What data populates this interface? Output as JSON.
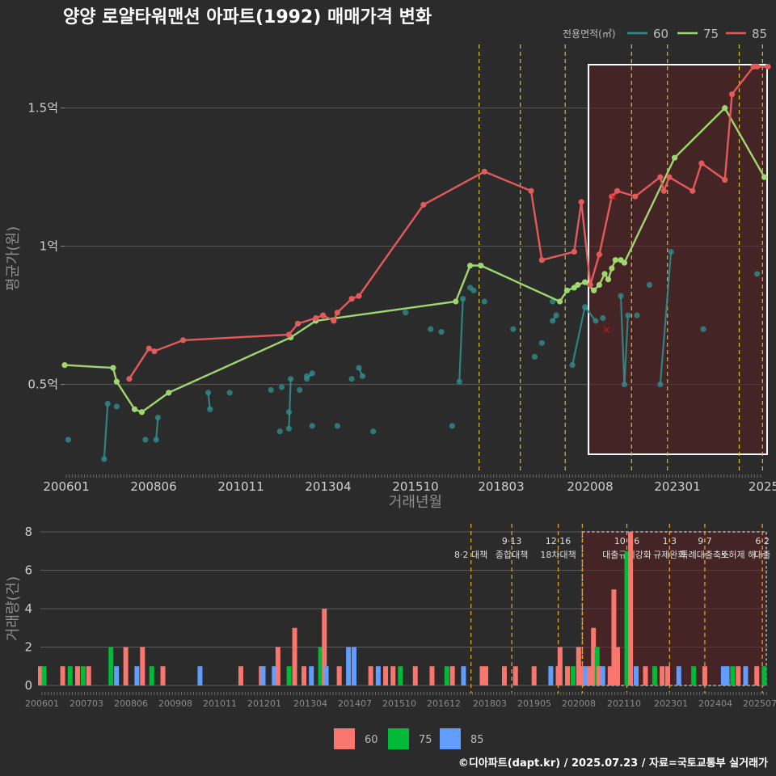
{
  "title": "양양 로얄타워맨션 아파트(1992) 매매가격 변화",
  "footer": "©디아파트(dapt.kr) / 2025.07.23 / 자료=국토교통부 실거래가",
  "legend_top": {
    "heading": "전용면적(㎡)",
    "items": [
      {
        "label": "60",
        "color": "#2f8c8c"
      },
      {
        "label": "75",
        "color": "#9ed66f"
      },
      {
        "label": "85",
        "color": "#e45a5a"
      }
    ]
  },
  "legend_bottom": [
    {
      "label": "60",
      "color": "#f8766d"
    },
    {
      "label": "75",
      "color": "#00ba38"
    },
    {
      "label": "85",
      "color": "#619cff"
    }
  ],
  "chart_data": [
    {
      "type": "line",
      "title": "양양 로얄타워맨션 아파트(1992) 매매가격 변화",
      "xlabel": "거래년월",
      "ylabel": "평균가(원)",
      "x_ticks": [
        "200601",
        "200806",
        "201011",
        "201304",
        "201510",
        "201803",
        "202008",
        "202301",
        "2025"
      ],
      "y_ticks": [
        {
          "value": 0.5,
          "label": "0.5억"
        },
        {
          "value": 1.0,
          "label": "1억"
        },
        {
          "value": 1.5,
          "label": "1.5억"
        }
      ],
      "ylim": [
        0.18,
        1.73
      ],
      "xlim": [
        2006.0,
        2025.6
      ],
      "grid": true,
      "legend": "top-right",
      "series": [
        {
          "name": "60",
          "color": "#2f8c8c",
          "style": "scatter",
          "points": [
            [
              2006.1,
              0.3
            ],
            [
              2007.1,
              0.23
            ],
            [
              2007.2,
              0.43
            ],
            [
              2007.45,
              0.42
            ],
            [
              2008.25,
              0.3
            ],
            [
              2008.55,
              0.3
            ],
            [
              2008.6,
              0.38
            ],
            [
              2010.0,
              0.47
            ],
            [
              2010.05,
              0.41
            ],
            [
              2010.6,
              0.47
            ],
            [
              2011.75,
              0.48
            ],
            [
              2012.0,
              0.33
            ],
            [
              2012.05,
              0.49
            ],
            [
              2012.25,
              0.34
            ],
            [
              2012.25,
              0.4
            ],
            [
              2012.3,
              0.52
            ],
            [
              2012.55,
              0.48
            ],
            [
              2012.75,
              0.52
            ],
            [
              2012.75,
              0.53
            ],
            [
              2012.9,
              0.35
            ],
            [
              2012.9,
              0.54
            ],
            [
              2013.6,
              0.35
            ],
            [
              2014.0,
              0.52
            ],
            [
              2014.2,
              0.56
            ],
            [
              2014.3,
              0.53
            ],
            [
              2014.6,
              0.33
            ],
            [
              2015.5,
              0.76
            ],
            [
              2016.2,
              0.7
            ],
            [
              2016.5,
              0.69
            ],
            [
              2016.8,
              0.35
            ],
            [
              2017.0,
              0.51
            ],
            [
              2017.1,
              0.81
            ],
            [
              2017.3,
              0.85
            ],
            [
              2017.4,
              0.84
            ],
            [
              2017.7,
              0.8
            ],
            [
              2018.5,
              0.7
            ],
            [
              2019.1,
              0.6
            ],
            [
              2019.3,
              0.65
            ],
            [
              2019.6,
              0.8
            ],
            [
              2019.6,
              0.73
            ],
            [
              2019.7,
              0.75
            ],
            [
              2020.15,
              0.57
            ],
            [
              2020.5,
              0.78
            ],
            [
              2020.8,
              0.73
            ],
            [
              2021.0,
              0.74
            ],
            [
              2021.5,
              0.82
            ],
            [
              2021.6,
              0.5
            ],
            [
              2021.7,
              0.75
            ],
            [
              2021.95,
              0.75
            ],
            [
              2022.3,
              0.86
            ],
            [
              2022.6,
              0.5
            ],
            [
              2022.9,
              0.98
            ],
            [
              2023.8,
              0.7
            ],
            [
              2025.3,
              0.9
            ]
          ],
          "segments": [
            [
              [
                2007.1,
                0.23
              ],
              [
                2007.2,
                0.43
              ]
            ],
            [
              [
                2008.55,
                0.3
              ],
              [
                2008.6,
                0.38
              ]
            ],
            [
              [
                2010.0,
                0.47
              ],
              [
                2010.05,
                0.41
              ]
            ],
            [
              [
                2012.25,
                0.34
              ],
              [
                2012.3,
                0.52
              ]
            ],
            [
              [
                2012.75,
                0.52
              ],
              [
                2012.9,
                0.54
              ]
            ],
            [
              [
                2014.2,
                0.56
              ],
              [
                2014.3,
                0.53
              ]
            ],
            [
              [
                2017.0,
                0.51
              ],
              [
                2017.1,
                0.81
              ]
            ],
            [
              [
                2019.6,
                0.73
              ],
              [
                2019.7,
                0.75
              ]
            ],
            [
              [
                2020.15,
                0.57
              ],
              [
                2020.5,
                0.78
              ]
            ],
            [
              [
                2020.5,
                0.78
              ],
              [
                2020.8,
                0.73
              ]
            ],
            [
              [
                2021.5,
                0.82
              ],
              [
                2021.6,
                0.5
              ]
            ],
            [
              [
                2021.6,
                0.5
              ],
              [
                2021.7,
                0.75
              ]
            ],
            [
              [
                2022.6,
                0.5
              ],
              [
                2022.9,
                0.98
              ]
            ]
          ]
        },
        {
          "name": "75",
          "color": "#9ed66f",
          "style": "line",
          "points": [
            [
              2006.0,
              0.57
            ],
            [
              2007.35,
              0.56
            ],
            [
              2007.45,
              0.51
            ],
            [
              2007.95,
              0.41
            ],
            [
              2008.15,
              0.4
            ],
            [
              2008.9,
              0.47
            ],
            [
              2012.3,
              0.67
            ],
            [
              2013.0,
              0.73
            ],
            [
              2016.9,
              0.8
            ],
            [
              2017.3,
              0.93
            ],
            [
              2017.6,
              0.93
            ],
            [
              2019.8,
              0.8
            ],
            [
              2020.0,
              0.84
            ],
            [
              2020.2,
              0.85
            ],
            [
              2020.3,
              0.86
            ],
            [
              2020.5,
              0.87
            ],
            [
              2020.75,
              0.84
            ],
            [
              2020.9,
              0.86
            ],
            [
              2021.05,
              0.9
            ],
            [
              2021.15,
              0.88
            ],
            [
              2021.25,
              0.92
            ],
            [
              2021.35,
              0.95
            ],
            [
              2021.5,
              0.95
            ],
            [
              2021.6,
              0.94
            ],
            [
              2023.0,
              1.32
            ],
            [
              2024.4,
              1.5
            ],
            [
              2025.5,
              1.25
            ]
          ]
        },
        {
          "name": "85",
          "color": "#e45a5a",
          "style": "line",
          "points": [
            [
              2007.8,
              0.52
            ],
            [
              2008.35,
              0.63
            ],
            [
              2008.5,
              0.62
            ],
            [
              2009.3,
              0.66
            ],
            [
              2012.25,
              0.68
            ],
            [
              2012.5,
              0.72
            ],
            [
              2013.0,
              0.74
            ],
            [
              2013.2,
              0.75
            ],
            [
              2013.5,
              0.73
            ],
            [
              2013.6,
              0.76
            ],
            [
              2014.0,
              0.81
            ],
            [
              2014.2,
              0.82
            ],
            [
              2016.0,
              1.15
            ],
            [
              2017.7,
              1.27
            ],
            [
              2019.0,
              1.2
            ],
            [
              2019.3,
              0.95
            ],
            [
              2020.2,
              0.98
            ],
            [
              2020.4,
              1.16
            ],
            [
              2020.65,
              0.86
            ],
            [
              2020.9,
              0.97
            ],
            [
              2021.25,
              1.18
            ],
            [
              2021.4,
              1.2
            ],
            [
              2021.9,
              1.18
            ],
            [
              2022.6,
              1.25
            ],
            [
              2022.7,
              1.2
            ],
            [
              2022.85,
              1.25
            ],
            [
              2023.5,
              1.2
            ],
            [
              2023.75,
              1.3
            ],
            [
              2024.4,
              1.24
            ],
            [
              2024.6,
              1.55
            ],
            [
              2025.2,
              1.65
            ],
            [
              2025.3,
              1.65
            ],
            [
              2025.6,
              1.65
            ]
          ]
        }
      ],
      "cancelled_marks": [
        [
          2021.1,
          0.7
        ],
        [
          2021.3,
          1.18
        ]
      ],
      "policy_lines": [
        2017.55,
        2018.7,
        2019.95,
        2021.8,
        2022.8,
        2024.8,
        2025.45
      ],
      "highlight_range": [
        2020.6,
        2025.6
      ]
    },
    {
      "type": "bar",
      "xlabel": "",
      "ylabel": "거래량(건)",
      "x_ticks": [
        "200601",
        "200703",
        "200806",
        "200908",
        "201011",
        "201201",
        "201304",
        "201407",
        "201510",
        "201612",
        "201803",
        "201905",
        "202008",
        "202110",
        "202301",
        "202404",
        "202507"
      ],
      "y_ticks": [
        0,
        2,
        4,
        6,
        8
      ],
      "ylim": [
        0,
        8.5
      ],
      "legend": "bottom-center",
      "events": [
        {
          "x": 2017.6,
          "line1": "",
          "line2": "8·2 대책"
        },
        {
          "x": 2018.7,
          "line1": "9·13",
          "line2": "종합대책"
        },
        {
          "x": 2019.95,
          "line1": "12·16",
          "line2": "18차대책"
        },
        {
          "x": 2021.8,
          "line1": "10·26",
          "line2": "대출규제강화"
        },
        {
          "x": 2022.95,
          "line1": "1·3",
          "line2": "규제완화"
        },
        {
          "x": 2023.9,
          "line1": "9·7",
          "line2": "특례대출축소"
        },
        {
          "x": 2024.8,
          "line1": "",
          "line2": "토허제 해"
        },
        {
          "x": 2025.45,
          "line1": "6·2",
          "line2": "대출"
        }
      ],
      "bars": [
        [
          2006.0,
          "60",
          1
        ],
        [
          2006.1,
          "75",
          1
        ],
        [
          2006.6,
          "60",
          1
        ],
        [
          2006.8,
          "75",
          1
        ],
        [
          2007.0,
          "60",
          1
        ],
        [
          2007.15,
          "75",
          1
        ],
        [
          2007.3,
          "60",
          1
        ],
        [
          2007.9,
          "75",
          2
        ],
        [
          2008.05,
          "85",
          1
        ],
        [
          2008.3,
          "60",
          2
        ],
        [
          2008.6,
          "85",
          1
        ],
        [
          2008.75,
          "60",
          2
        ],
        [
          2009.0,
          "75",
          1
        ],
        [
          2009.3,
          "60",
          1
        ],
        [
          2010.3,
          "85",
          1
        ],
        [
          2011.4,
          "60",
          1
        ],
        [
          2011.95,
          "60",
          1
        ],
        [
          2012.0,
          "85",
          1
        ],
        [
          2012.3,
          "85",
          1
        ],
        [
          2012.4,
          "60",
          2
        ],
        [
          2012.7,
          "75",
          1
        ],
        [
          2012.85,
          "60",
          3
        ],
        [
          2013.1,
          "60",
          1
        ],
        [
          2013.3,
          "85",
          1
        ],
        [
          2013.55,
          "75",
          2
        ],
        [
          2013.65,
          "60",
          4
        ],
        [
          2013.7,
          "85",
          1
        ],
        [
          2014.05,
          "60",
          1
        ],
        [
          2014.3,
          "85",
          2
        ],
        [
          2014.45,
          "85",
          2
        ],
        [
          2014.9,
          "60",
          1
        ],
        [
          2015.1,
          "85",
          1
        ],
        [
          2015.3,
          "60",
          1
        ],
        [
          2015.5,
          "60",
          1
        ],
        [
          2015.7,
          "75",
          1
        ],
        [
          2016.1,
          "60",
          1
        ],
        [
          2016.55,
          "60",
          1
        ],
        [
          2016.95,
          "75",
          1
        ],
        [
          2017.1,
          "60",
          1
        ],
        [
          2017.4,
          "85",
          1
        ],
        [
          2017.9,
          "60",
          1
        ],
        [
          2018.0,
          "60",
          1
        ],
        [
          2018.5,
          "60",
          1
        ],
        [
          2018.8,
          "60",
          1
        ],
        [
          2019.3,
          "60",
          1
        ],
        [
          2019.75,
          "85",
          1
        ],
        [
          2019.95,
          "60",
          1
        ],
        [
          2020.0,
          "60",
          2
        ],
        [
          2020.2,
          "60",
          1
        ],
        [
          2020.35,
          "75",
          1
        ],
        [
          2020.5,
          "60",
          2
        ],
        [
          2020.6,
          "60",
          1
        ],
        [
          2020.7,
          "85",
          1
        ],
        [
          2020.8,
          "60",
          1
        ],
        [
          2020.9,
          "60",
          3
        ],
        [
          2021.0,
          "75",
          2
        ],
        [
          2021.05,
          "60",
          1
        ],
        [
          2021.15,
          "85",
          1
        ],
        [
          2021.35,
          "60",
          1
        ],
        [
          2021.45,
          "60",
          5
        ],
        [
          2021.55,
          "60",
          2
        ],
        [
          2021.8,
          "75",
          7
        ],
        [
          2021.9,
          "60",
          8
        ],
        [
          2022.05,
          "85",
          1
        ],
        [
          2022.3,
          "60",
          1
        ],
        [
          2022.55,
          "75",
          1
        ],
        [
          2022.75,
          "60",
          1
        ],
        [
          2022.9,
          "60",
          1
        ],
        [
          2023.2,
          "85",
          1
        ],
        [
          2023.6,
          "75",
          1
        ],
        [
          2023.9,
          "60",
          1
        ],
        [
          2024.4,
          "85",
          1
        ],
        [
          2024.5,
          "85",
          1
        ],
        [
          2024.65,
          "75",
          1
        ],
        [
          2024.8,
          "60",
          1
        ],
        [
          2025.0,
          "85",
          1
        ],
        [
          2025.3,
          "60",
          1
        ],
        [
          2025.5,
          "75",
          1
        ]
      ],
      "policy_lines": [
        2017.6,
        2018.7,
        2019.95,
        2020.6,
        2021.8,
        2022.95,
        2023.9,
        2025.45
      ],
      "highlight_range": [
        2020.6,
        2025.6
      ]
    }
  ]
}
